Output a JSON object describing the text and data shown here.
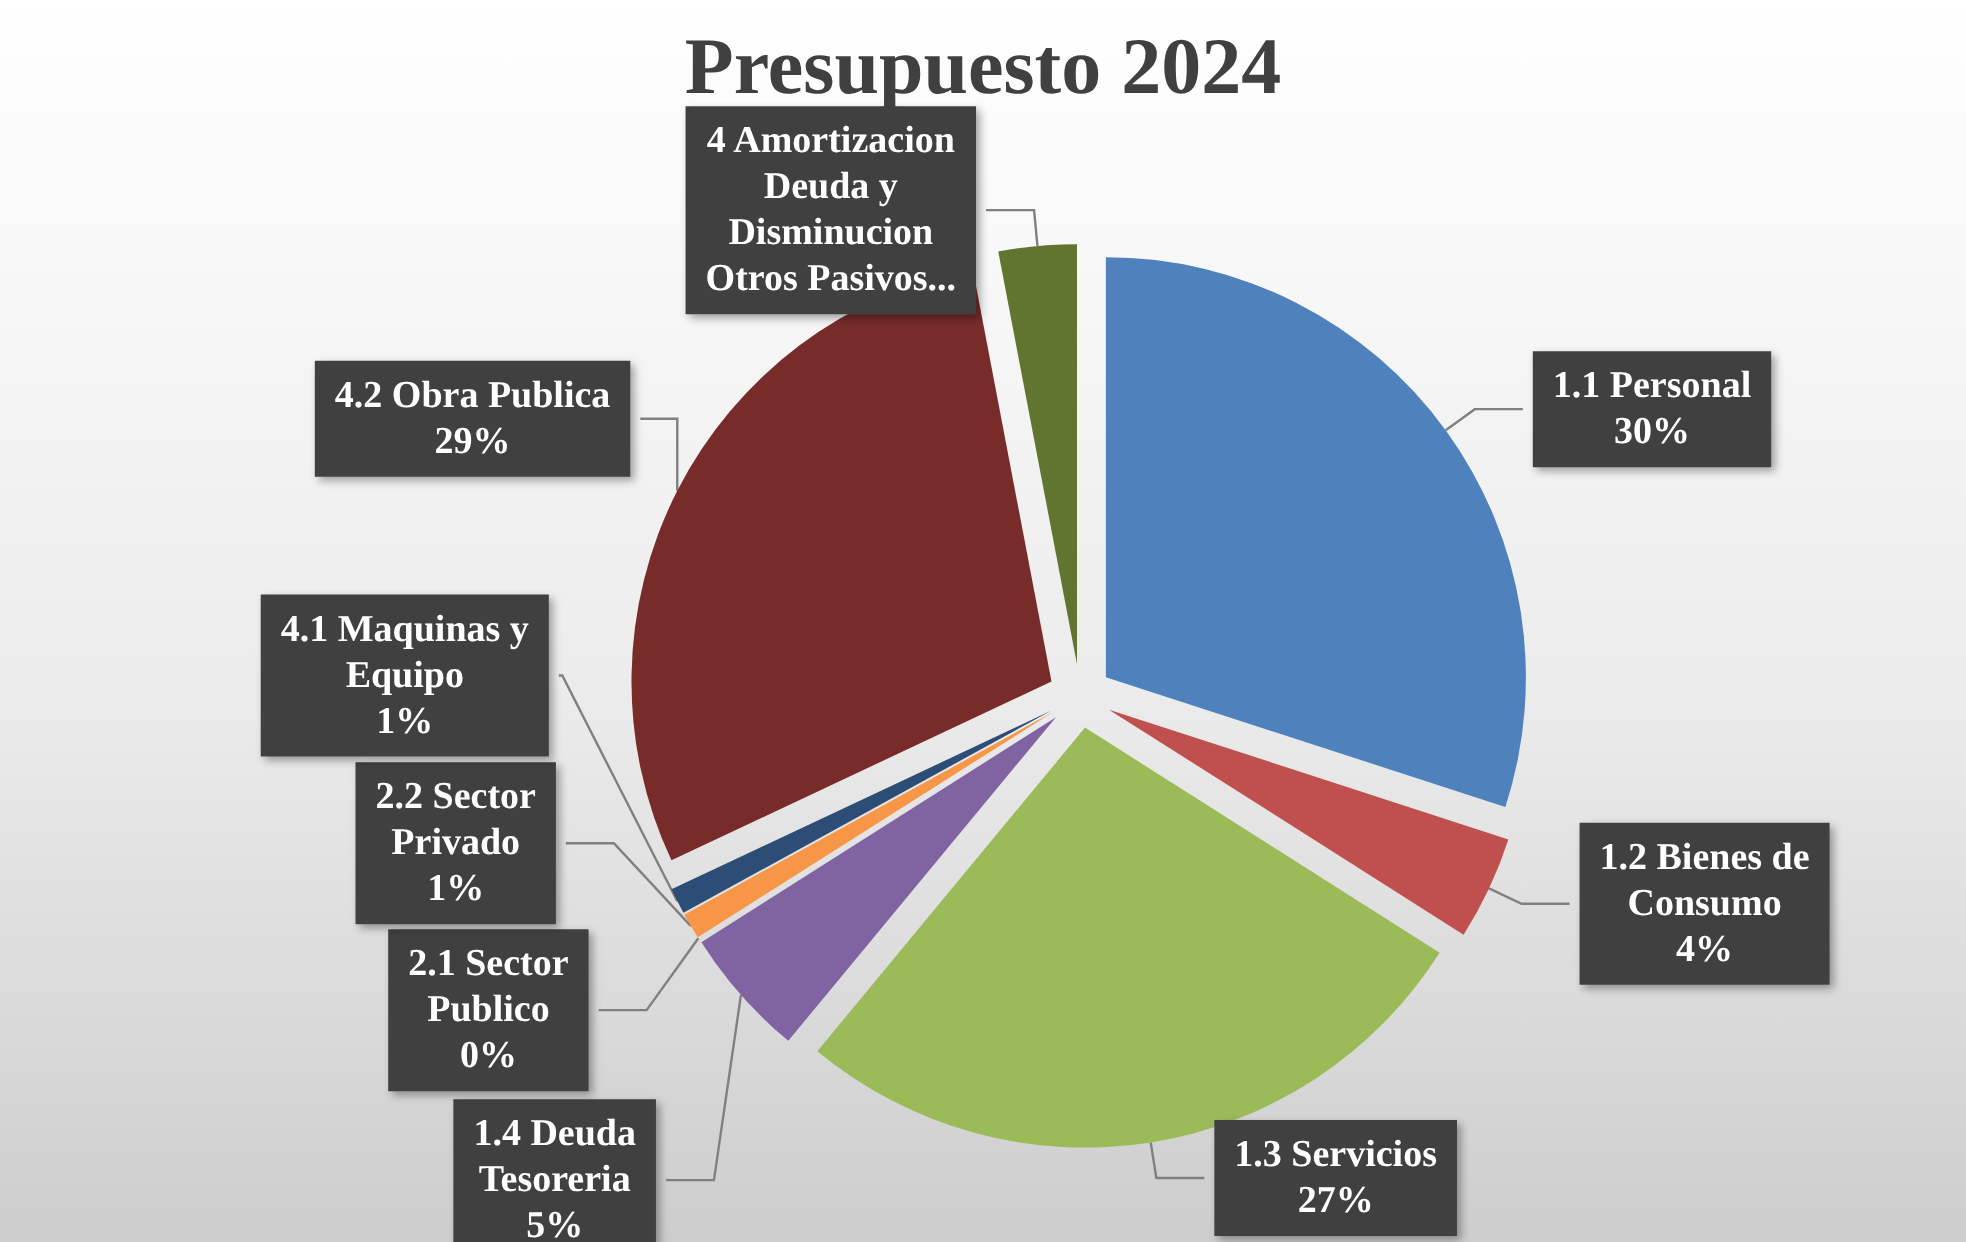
{
  "chart_data": {
    "type": "pie",
    "title": "Presupuesto 2024",
    "categories": [
      "1.1 Personal",
      "1.2 Bienes de Consumo",
      "1.3 Servicios",
      "1.4 Deuda Tesoreria",
      "2.1 Sector Publico",
      "2.2 Sector Privado",
      "4.1 Maquinas y Equipo",
      "4.2 Obra Publica",
      "4 Amortizacion Deuda y Disminucion Otros Pasivos..."
    ],
    "values": [
      30,
      4,
      27,
      5,
      0,
      1,
      1,
      29,
      3
    ],
    "value_labels": [
      "30%",
      "4%",
      "27%",
      "5%",
      "0%",
      "1%",
      "1%",
      "29%",
      null
    ],
    "colors": [
      "#4f81bd",
      "#c0504d",
      "#9bbb59",
      "#8064a2",
      "#4bacc6",
      "#f79646",
      "#2c4d75",
      "#772c2a",
      "#5f7530"
    ]
  }
}
